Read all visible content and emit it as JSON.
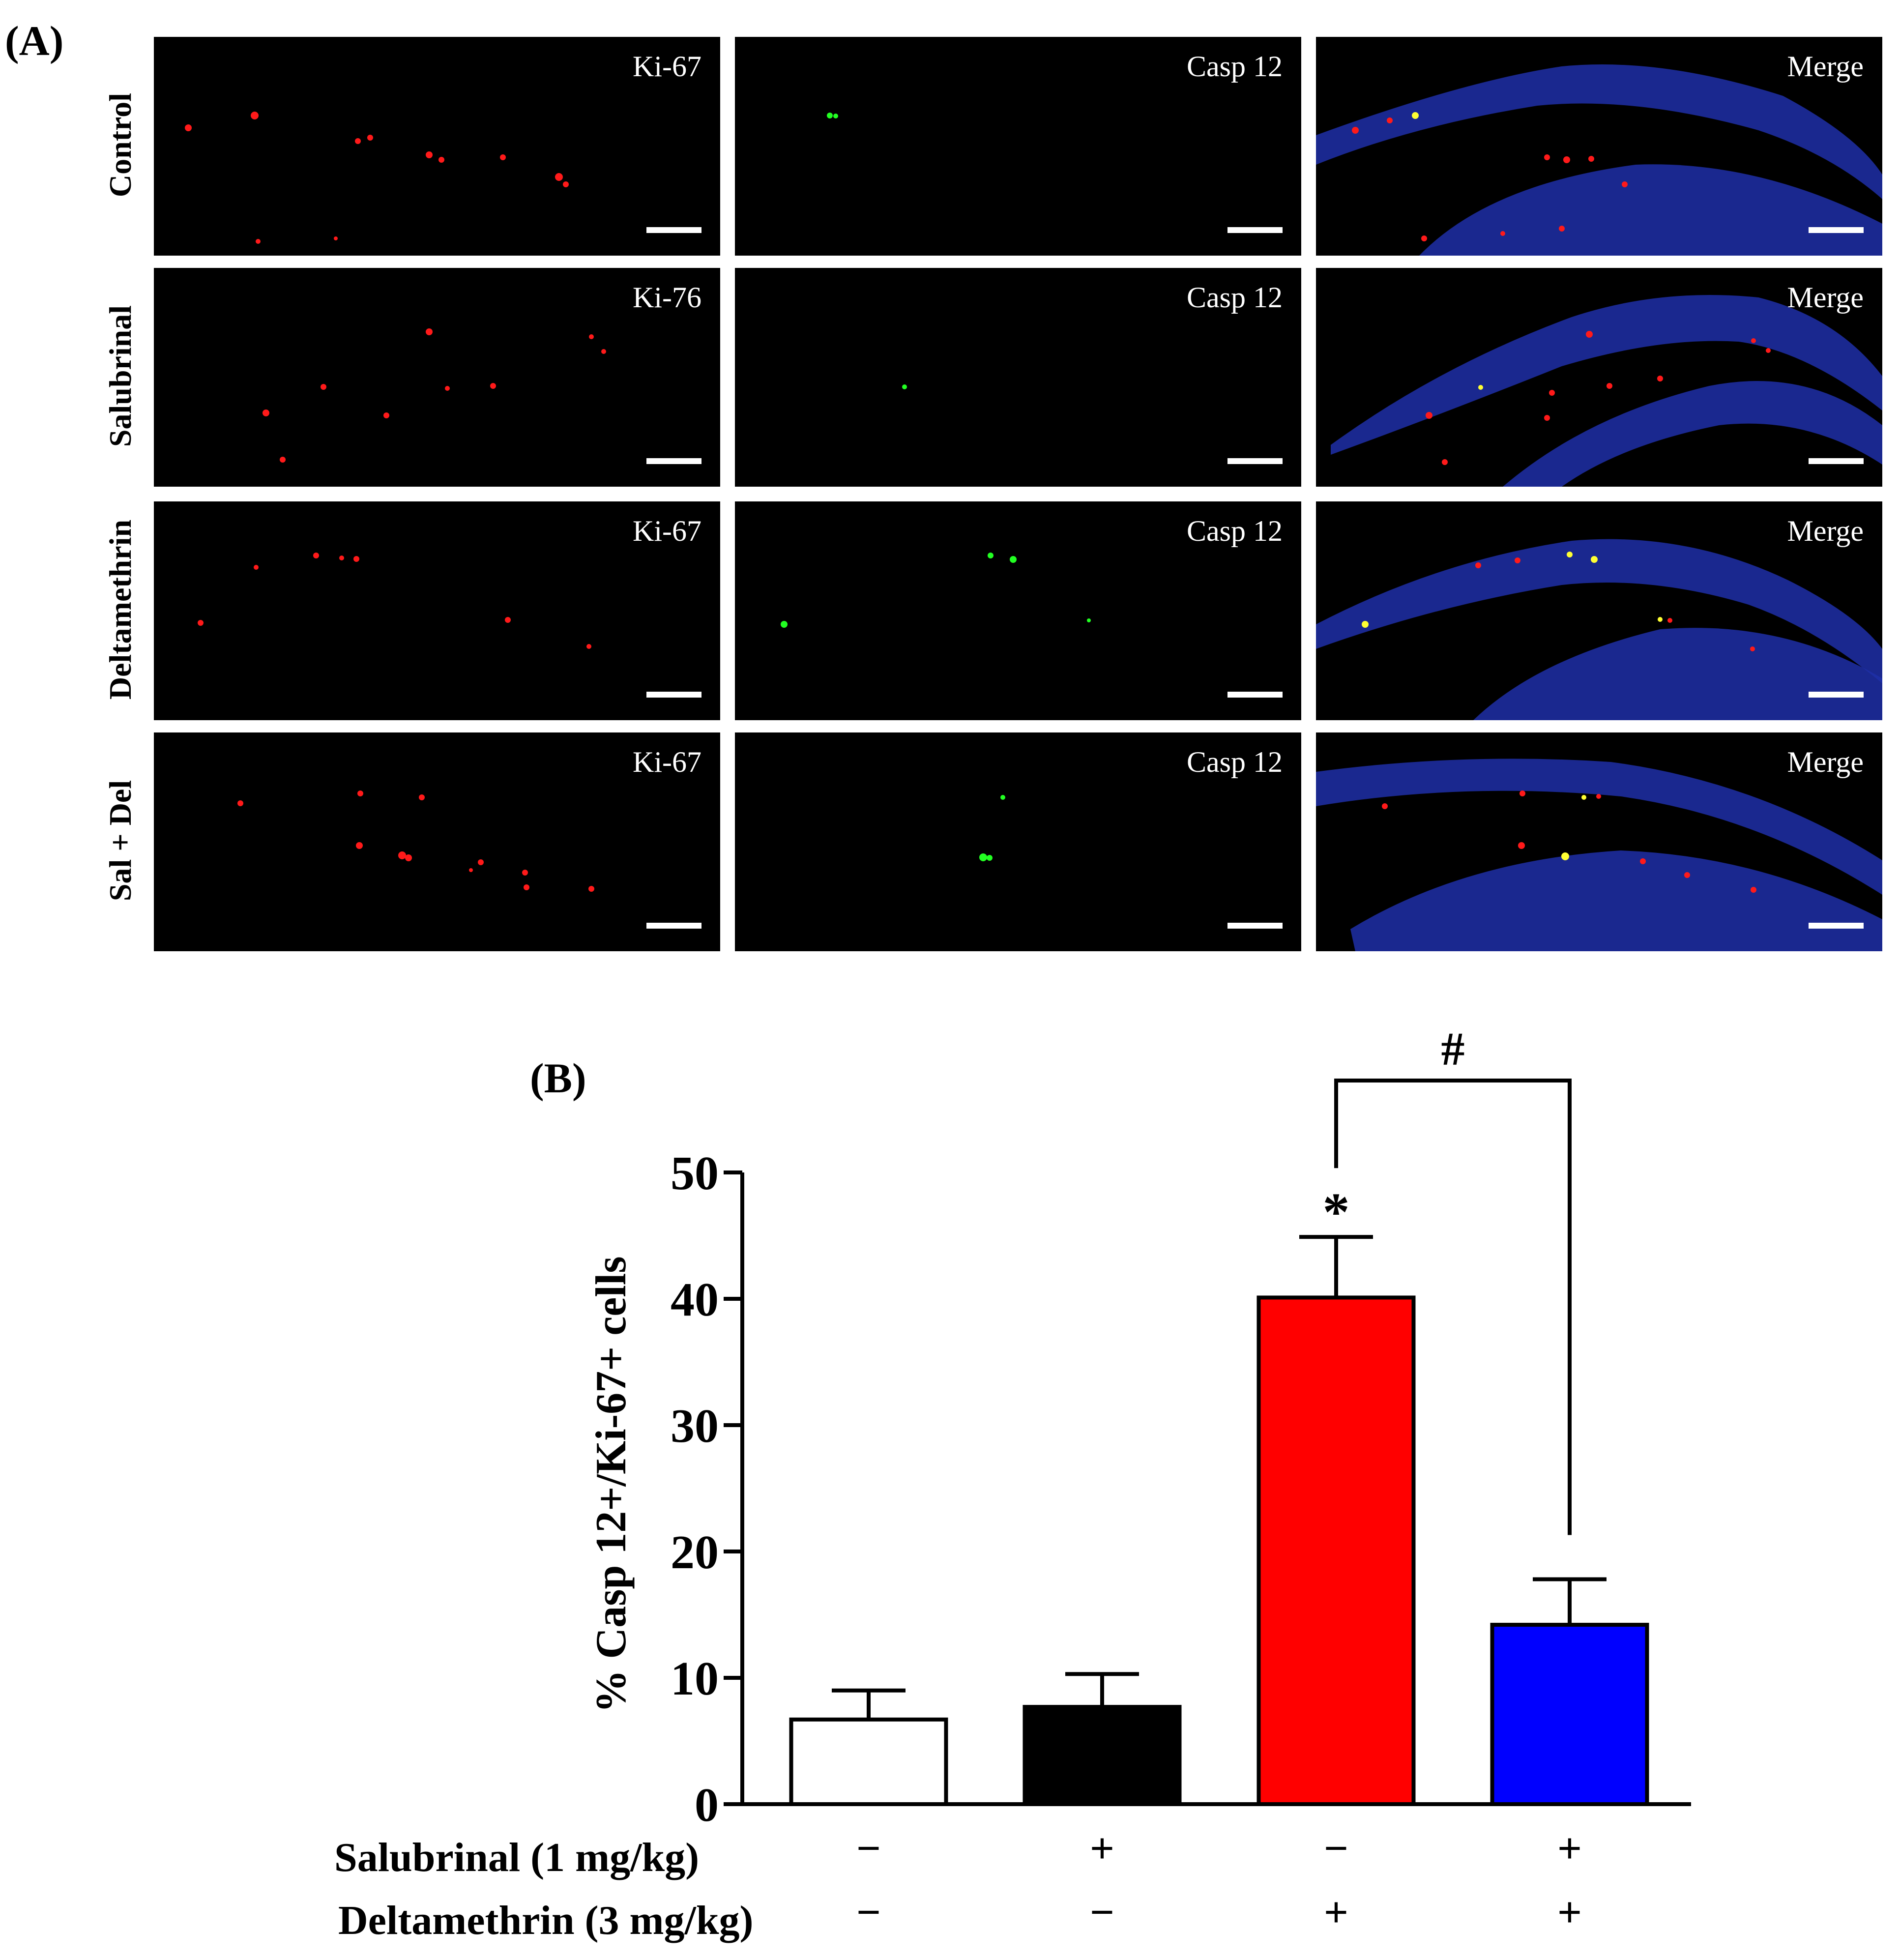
{
  "panel_a": {
    "label": "(A)",
    "rows": [
      {
        "name": "Control",
        "channels": [
          "Ki-67",
          "Casp 12",
          "Merge"
        ]
      },
      {
        "name": "Salubrinal",
        "channels": [
          "Ki-76",
          "Casp 12",
          "Merge"
        ]
      },
      {
        "name": "Deltamethrin",
        "channels": [
          "Ki-67",
          "Casp 12",
          "Merge"
        ]
      },
      {
        "name": "Sal + Del",
        "channels": [
          "Ki-67",
          "Casp 12",
          "Merge"
        ]
      }
    ]
  },
  "panel_b": {
    "label": "(B)",
    "conditions": [
      {
        "label": "Salubrinal (1 mg/kg)",
        "signs": [
          "−",
          "+",
          "−",
          "+"
        ]
      },
      {
        "label": "Deltamethrin (3 mg/kg)",
        "signs": [
          "−",
          "−",
          "+",
          "+"
        ]
      }
    ]
  },
  "chart_data": {
    "type": "bar",
    "title": "",
    "xlabel": "",
    "ylabel": "% Casp 12+/Ki-67+ cells",
    "ylim": [
      0,
      50
    ],
    "yticks": [
      0,
      10,
      20,
      30,
      40,
      50
    ],
    "categories": [
      "Control",
      "Salubrinal",
      "Deltamethrin",
      "Sal + Del"
    ],
    "values": [
      6.7,
      7.7,
      40.1,
      14.2
    ],
    "errors": [
      2.3,
      2.6,
      4.8,
      3.6
    ],
    "colors": [
      "#ffffff",
      "#000000",
      "#ff0000",
      "#0000ff"
    ],
    "annotations": [
      {
        "text": "*",
        "bar": 2
      },
      {
        "text": "#",
        "from_bar": 2,
        "to_bar": 3
      }
    ]
  }
}
